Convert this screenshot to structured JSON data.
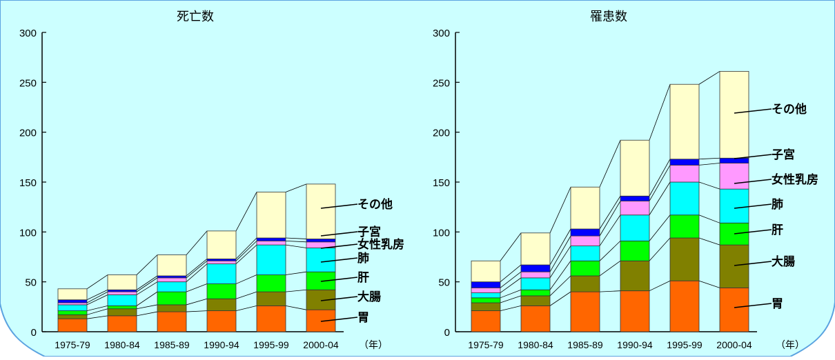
{
  "colors": {
    "background": "#CCFFFF",
    "frame": "#5BA3E0",
    "胃": "#FF6600",
    "大腸": "#808000",
    "肝": "#00FF00",
    "肺": "#00FFFF",
    "女性乳房": "#FF99FF",
    "子宮": "#0000FF",
    "その他": "#FFFFCC"
  },
  "series_order": [
    "胃",
    "大腸",
    "肝",
    "肺",
    "女性乳房",
    "子宮",
    "その他"
  ],
  "unit_label": "（年）",
  "chart_data": [
    {
      "type": "bar",
      "stacked": true,
      "title": "死亡数",
      "categories": [
        "1975-79",
        "1980-84",
        "1985-89",
        "1990-94",
        "1995-99",
        "2000-04"
      ],
      "y_ticks": [
        "0",
        "50",
        "100",
        "150",
        "200",
        "250",
        "300"
      ],
      "ylim": [
        0,
        300
      ],
      "series": [
        {
          "name": "胃",
          "values": [
            13,
            16,
            20,
            21,
            26,
            22
          ]
        },
        {
          "name": "大腸",
          "values": [
            4,
            7,
            7,
            12,
            14,
            20
          ]
        },
        {
          "name": "肝",
          "values": [
            4,
            3,
            13,
            15,
            17,
            18
          ]
        },
        {
          "name": "肺",
          "values": [
            6,
            11,
            10,
            20,
            30,
            24
          ]
        },
        {
          "name": "女性乳房",
          "values": [
            2,
            3,
            4,
            3,
            4,
            6
          ]
        },
        {
          "name": "子宮",
          "values": [
            3,
            2,
            2,
            2,
            3,
            3
          ]
        },
        {
          "name": "その他",
          "values": [
            11,
            15,
            21,
            28,
            46,
            55
          ]
        }
      ],
      "legend_labels": [
        "その他",
        "子宮",
        "女性乳房",
        "肺",
        "肝",
        "大腸",
        "胃"
      ]
    },
    {
      "type": "bar",
      "stacked": true,
      "title": "罹患数",
      "categories": [
        "1975-79",
        "1980-84",
        "1985-89",
        "1990-94",
        "1995-99",
        "2000-04"
      ],
      "y_ticks": [
        "0",
        "50",
        "100",
        "150",
        "200",
        "250",
        "300"
      ],
      "ylim": [
        0,
        300
      ],
      "series": [
        {
          "name": "胃",
          "values": [
            21,
            26,
            40,
            41,
            51,
            44
          ]
        },
        {
          "name": "大腸",
          "values": [
            8,
            10,
            16,
            30,
            43,
            43
          ]
        },
        {
          "name": "肝",
          "values": [
            5,
            6,
            15,
            20,
            23,
            22
          ]
        },
        {
          "name": "肺",
          "values": [
            5,
            12,
            15,
            26,
            33,
            34
          ]
        },
        {
          "name": "女性乳房",
          "values": [
            5,
            6,
            10,
            14,
            17,
            26
          ]
        },
        {
          "name": "子宮",
          "values": [
            6,
            7,
            7,
            5,
            6,
            5
          ]
        },
        {
          "name": "その他",
          "values": [
            21,
            32,
            42,
            56,
            75,
            87
          ]
        }
      ],
      "legend_labels": [
        "その他",
        "子宮",
        "女性乳房",
        "肺",
        "肝",
        "大腸",
        "胃"
      ]
    }
  ]
}
